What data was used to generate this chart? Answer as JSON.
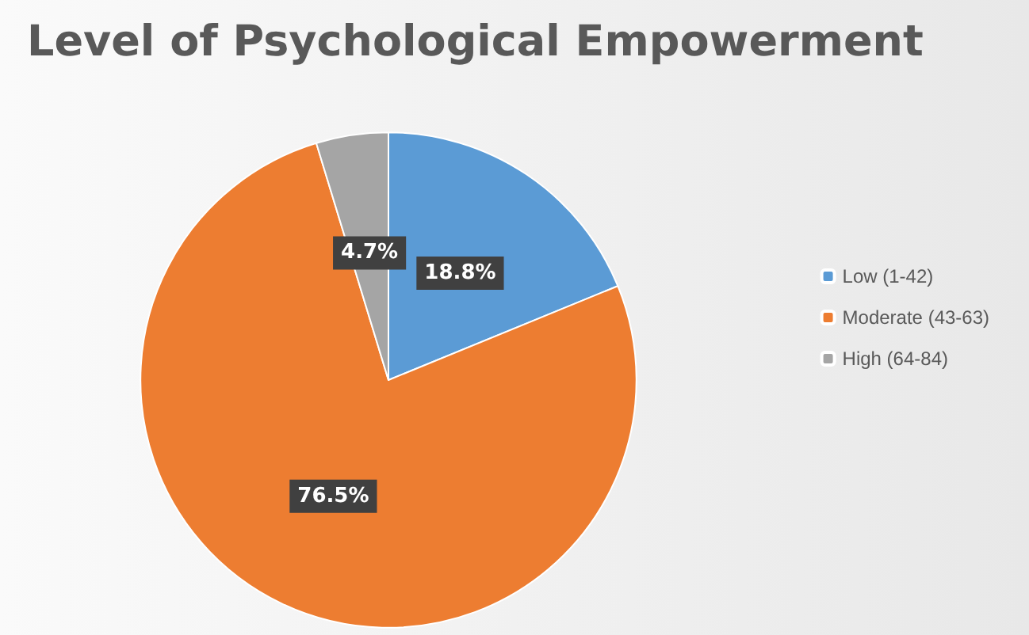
{
  "chart_data": {
    "type": "pie",
    "title": "Level of Psychological Empowerment",
    "categories": [
      "Low (1-42)",
      "Moderate (43-63)",
      "High (64-84)"
    ],
    "values": [
      18.8,
      76.5,
      4.7
    ],
    "colors": [
      "#5b9bd5",
      "#ed7d31",
      "#a5a5a5"
    ],
    "value_labels": [
      "18.8%",
      "76.5%",
      "4.7%"
    ],
    "legend": "right"
  }
}
